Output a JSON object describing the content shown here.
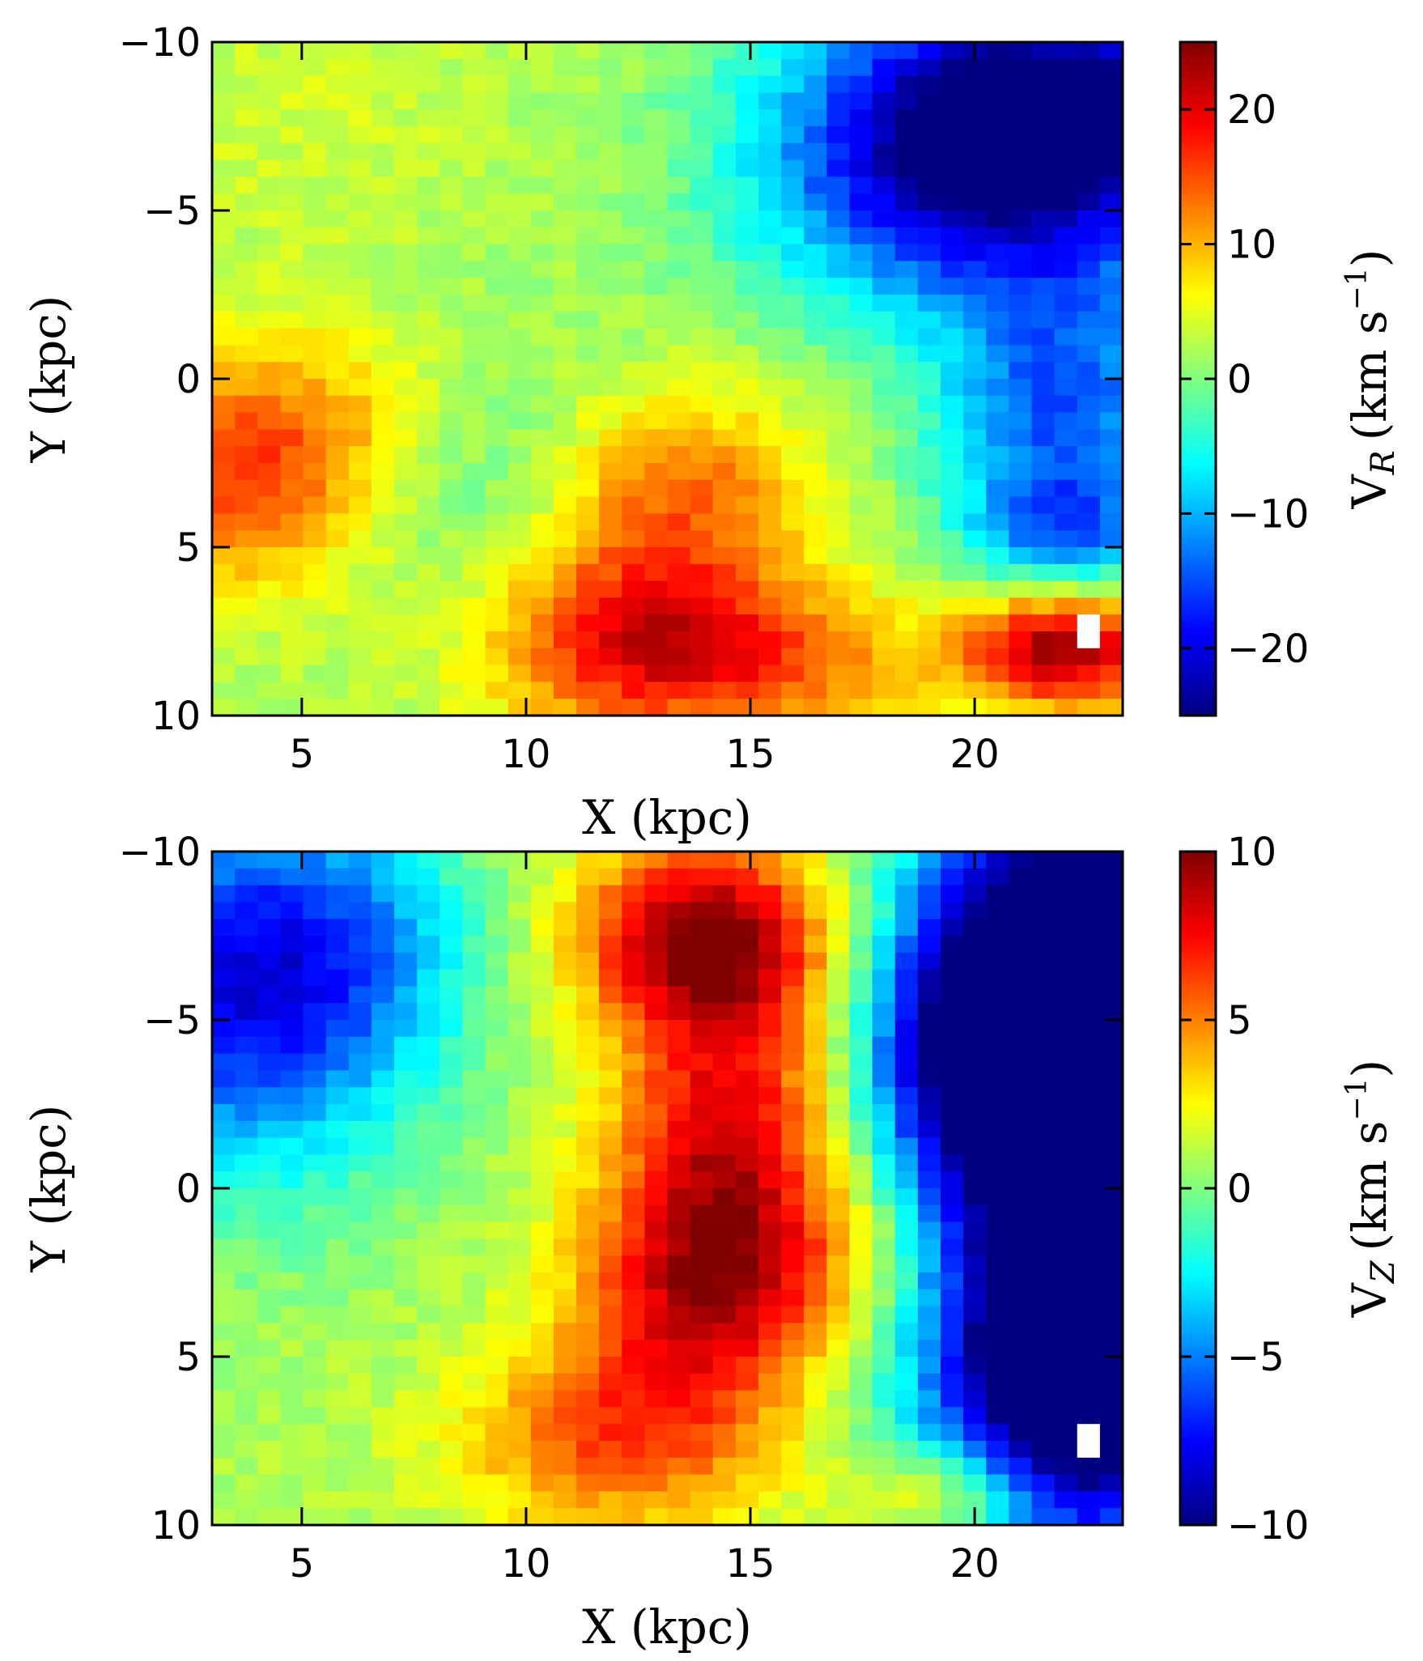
{
  "chart_data": [
    {
      "type": "heatmap",
      "panel": "top",
      "xlabel": "X (kpc)",
      "ylabel": "Y (kpc)",
      "xlim": [
        3,
        23.3
      ],
      "ylim": [
        -10,
        10
      ],
      "y_inverted": true,
      "xticks": [
        "5",
        "10",
        "15",
        "20"
      ],
      "yticks": [
        "−10",
        "−5",
        "0",
        "5",
        "10"
      ],
      "colorbar": {
        "label_main": "V",
        "label_sub": "R",
        "label_units": "(km s",
        "label_sup": "−1",
        "label_close": ")",
        "range": [
          -25,
          25
        ],
        "ticks": [
          "−20",
          "−10",
          "0",
          "10",
          "20"
        ],
        "colormap": "jet"
      },
      "grid_nx": 40,
      "grid_ny": 40,
      "blobs": [
        {
          "x": 10.5,
          "y": -9.5,
          "sx": 8,
          "sy": 5,
          "a": 0
        },
        {
          "x": 5,
          "y": -8,
          "sx": 3,
          "sy": 3,
          "a": 2
        },
        {
          "x": 3.5,
          "y": 3,
          "sx": 2.2,
          "sy": 2.4,
          "a": 12
        },
        {
          "x": 6,
          "y": 1,
          "sx": 2.5,
          "sy": 2,
          "a": 5
        },
        {
          "x": 12.5,
          "y": 7.5,
          "sx": 2.5,
          "sy": 2.2,
          "a": 16
        },
        {
          "x": 13.5,
          "y": 3,
          "sx": 2,
          "sy": 2,
          "a": 10
        },
        {
          "x": 16,
          "y": 8.5,
          "sx": 3,
          "sy": 1.5,
          "a": 8
        },
        {
          "x": 22,
          "y": 8,
          "sx": 1.5,
          "sy": 1.2,
          "a": 22
        },
        {
          "x": 22,
          "y": -8,
          "sx": 3.5,
          "sy": 3,
          "a": -26
        },
        {
          "x": 19,
          "y": -6,
          "sx": 3,
          "sy": 3,
          "a": -14
        },
        {
          "x": 22,
          "y": 1,
          "sx": 2,
          "sy": 3,
          "a": -16
        },
        {
          "x": 22,
          "y": 4.5,
          "sx": 1.5,
          "sy": 1.2,
          "a": -10
        },
        {
          "x": 9,
          "y": 3,
          "sx": 2,
          "sy": 3,
          "a": -5
        }
      ],
      "base_value": 2,
      "missing_cells": [
        {
          "x": 22.6,
          "y": 7.6
        }
      ]
    },
    {
      "type": "heatmap",
      "panel": "bottom",
      "xlabel": "X (kpc)",
      "ylabel": "Y (kpc)",
      "xlim": [
        3,
        23.3
      ],
      "ylim": [
        -10,
        10
      ],
      "y_inverted": true,
      "xticks": [
        "5",
        "10",
        "15",
        "20"
      ],
      "yticks": [
        "−10",
        "−5",
        "0",
        "5",
        "10"
      ],
      "colorbar": {
        "label_main": "V",
        "label_sub": "Z",
        "label_units": "(km s",
        "label_sup": "−1",
        "label_close": ")",
        "range": [
          -10,
          10
        ],
        "ticks": [
          "−10",
          "−5",
          "0",
          "5",
          "10"
        ],
        "colormap": "jet"
      },
      "grid_nx": 40,
      "grid_ny": 40,
      "blobs": [
        {
          "x": 3.5,
          "y": -6,
          "sx": 2.5,
          "sy": 4,
          "a": -8
        },
        {
          "x": 6.5,
          "y": -7,
          "sx": 2,
          "sy": 3,
          "a": -3
        },
        {
          "x": 14,
          "y": -7.5,
          "sx": 2,
          "sy": 2,
          "a": 9
        },
        {
          "x": 14.5,
          "y": -2,
          "sx": 1.8,
          "sy": 3,
          "a": 6.5
        },
        {
          "x": 14,
          "y": 3,
          "sx": 2,
          "sy": 2.5,
          "a": 7
        },
        {
          "x": 12,
          "y": 7.5,
          "sx": 2.5,
          "sy": 2,
          "a": 5
        },
        {
          "x": 17.5,
          "y": 2,
          "sx": 2,
          "sy": 2,
          "a": 2
        },
        {
          "x": 19.5,
          "y": 9,
          "sx": 1.5,
          "sy": 1,
          "a": 4
        },
        {
          "x": 22.5,
          "y": -6,
          "sx": 2.5,
          "sy": 5,
          "a": -16
        },
        {
          "x": 22.5,
          "y": 5,
          "sx": 2.5,
          "sy": 4,
          "a": -16
        },
        {
          "x": 19.5,
          "y": -4,
          "sx": 1.5,
          "sy": 3,
          "a": -6
        }
      ],
      "base_value": 0.8,
      "missing_cells": [
        {
          "x": 22.6,
          "y": 7.6
        }
      ]
    }
  ]
}
